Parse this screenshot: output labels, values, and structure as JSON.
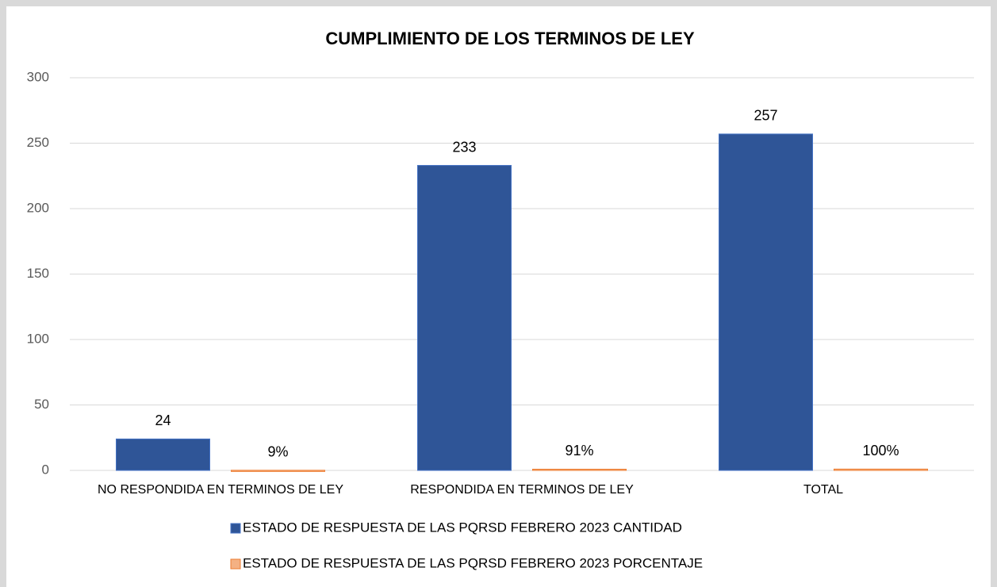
{
  "chart_data": {
    "type": "bar",
    "title": "CUMPLIMIENTO DE LOS TERMINOS DE LEY",
    "categories": [
      "NO RESPONDIDA EN TERMINOS DE LEY",
      "RESPONDIDA EN TERMINOS DE LEY",
      "TOTAL"
    ],
    "series": [
      {
        "name": "ESTADO DE RESPUESTA DE LAS PQRSD FEBRERO 2023 CANTIDAD",
        "color": "#2f5597",
        "values": [
          24,
          233,
          257
        ]
      },
      {
        "name": "ESTADO DE RESPUESTA DE LAS PQRSD FEBRERO 2023 PORCENTAJE",
        "color": "#f4b183",
        "values": [
          0.09,
          0.91,
          1
        ],
        "value_labels": [
          "9%",
          "91%",
          "100%"
        ]
      }
    ],
    "ylim": [
      0,
      300
    ],
    "yticks": [
      0,
      50,
      100,
      150,
      200,
      250,
      300
    ],
    "grid": true,
    "legend": "bottom"
  }
}
